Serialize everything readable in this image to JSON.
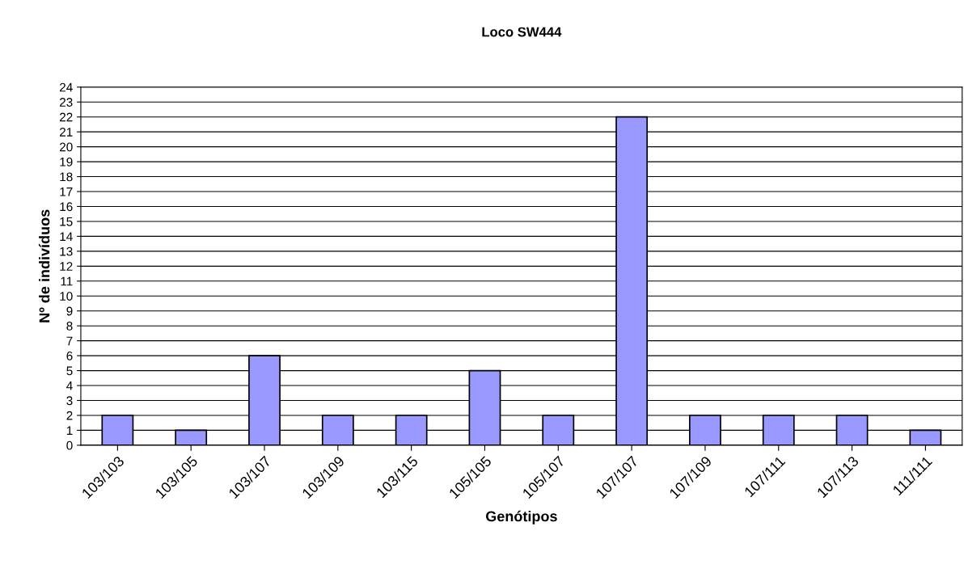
{
  "chart_data": {
    "type": "bar",
    "title": "Loco SW444",
    "xlabel": "Genótipos",
    "ylabel": "Nº de indivíduos",
    "categories": [
      "103/103",
      "103/105",
      "103/107",
      "103/109",
      "103/115",
      "105/105",
      "105/107",
      "107/107",
      "107/109",
      "107/111",
      "107/113",
      "111/111"
    ],
    "values": [
      2,
      1,
      6,
      2,
      2,
      5,
      2,
      22,
      2,
      2,
      2,
      1
    ],
    "color": "#9999ff",
    "ylim": [
      0,
      24
    ],
    "yticks": [
      0,
      1,
      2,
      3,
      4,
      5,
      6,
      7,
      8,
      9,
      10,
      11,
      12,
      13,
      14,
      15,
      16,
      17,
      18,
      19,
      20,
      21,
      22,
      23,
      24
    ],
    "grid": "y",
    "legend": false
  }
}
